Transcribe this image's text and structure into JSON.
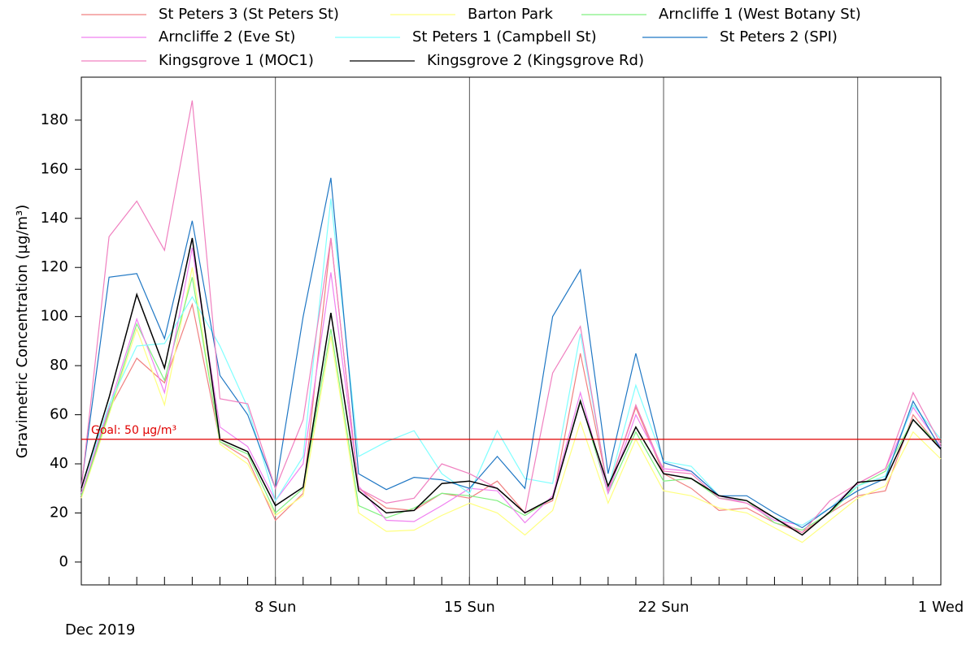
{
  "chart_data": {
    "type": "line",
    "ylabel": "Gravimetric Concentration (µg/m³)",
    "date_caption": "Dec 2019",
    "categories": [
      null,
      null,
      null,
      null,
      null,
      null,
      null,
      "8 Sun",
      null,
      null,
      null,
      null,
      null,
      null,
      "15 Sun",
      null,
      null,
      null,
      null,
      null,
      null,
      "22 Sun",
      null,
      null,
      null,
      null,
      null,
      null,
      null,
      null,
      null,
      "1 Wed"
    ],
    "ylim": [
      -9.3,
      197.5
    ],
    "yticks": [
      0,
      20,
      40,
      60,
      80,
      100,
      120,
      140,
      160,
      180
    ],
    "xgrid_every": 7,
    "annotations": [
      {
        "text": "Goal: 50 µg/m³",
        "value": 50,
        "color": "#e00000"
      }
    ],
    "series": [
      {
        "name": "St Peters 3 (St Peters St)",
        "color": "#f08080",
        "values": [
          27,
          62,
          83,
          73,
          105,
          49,
          42,
          17,
          28,
          132,
          30,
          22,
          21,
          28,
          26,
          33,
          20,
          25,
          85,
          30,
          63,
          36,
          30,
          21,
          22,
          16,
          12,
          20,
          27,
          29,
          60,
          46
        ]
      },
      {
        "name": "Barton Park",
        "color": "#ffff80",
        "values": [
          26,
          60,
          95,
          64,
          120,
          48,
          40,
          19,
          27,
          92,
          20,
          12.5,
          13,
          19,
          24,
          20,
          11,
          21,
          57,
          24,
          50,
          29,
          27,
          22,
          20,
          14,
          8,
          17,
          26,
          31,
          53,
          42
        ]
      },
      {
        "name": "Arncliffe 1 (West Botany St)",
        "color": "#80f080",
        "values": [
          27,
          61,
          97,
          74,
          116,
          49,
          44,
          20,
          30,
          95,
          23,
          18,
          22,
          28,
          27,
          25,
          19,
          26,
          66,
          28,
          53,
          33,
          34,
          26,
          25,
          16,
          13,
          20,
          31,
          37,
          58,
          47
        ]
      },
      {
        "name": "Arncliffe 2 (Eve St)",
        "color": "#f080f0",
        "values": [
          28,
          63,
          99,
          69,
          128,
          55,
          47,
          25,
          40,
          118,
          31,
          17,
          16.5,
          23,
          30,
          29,
          16,
          27,
          69,
          28,
          60,
          38,
          37,
          27,
          24,
          17,
          15,
          22,
          32,
          38,
          63,
          47
        ]
      },
      {
        "name": "St Peters 1 (Campbell St)",
        "color": "#80ffff",
        "values": [
          30,
          64,
          88,
          89,
          108,
          88,
          63,
          25,
          43,
          148,
          43,
          49,
          53.5,
          36,
          28,
          53.5,
          34,
          32,
          93,
          30,
          72,
          41,
          39,
          27,
          25,
          18,
          15,
          22,
          31,
          35,
          64,
          50
        ]
      },
      {
        "name": "St Peters 2 (SPI)",
        "color": "#1f77c4",
        "values": [
          31,
          116,
          117.5,
          91,
          139,
          76,
          60,
          30,
          100,
          156.5,
          36,
          29.5,
          34.5,
          33.5,
          30,
          43,
          30,
          100,
          119,
          36,
          85,
          40.5,
          37,
          27,
          27,
          20,
          14,
          22,
          29,
          34,
          65.5,
          46
        ]
      },
      {
        "name": "Kingsgrove 1 (MOC1)",
        "color": "#f080c0",
        "values": [
          30,
          132.5,
          147,
          127,
          188,
          66.5,
          64.5,
          30,
          58,
          132,
          30,
          24,
          26,
          40,
          36,
          30,
          20,
          77,
          96,
          29,
          64,
          37,
          36,
          26,
          24,
          18,
          12,
          25,
          32,
          38,
          69,
          48
        ]
      },
      {
        "name": "Kingsgrove 2 (Kingsgrove Rd)",
        "color": "#000000",
        "values": [
          30,
          67,
          109,
          79,
          132,
          50,
          45,
          23,
          30.5,
          101.5,
          29,
          20,
          21,
          32,
          33,
          30,
          20,
          26,
          65.5,
          31,
          55,
          36,
          34,
          27,
          25,
          18,
          11,
          20.5,
          32.5,
          33.5,
          58,
          46
        ]
      }
    ]
  }
}
